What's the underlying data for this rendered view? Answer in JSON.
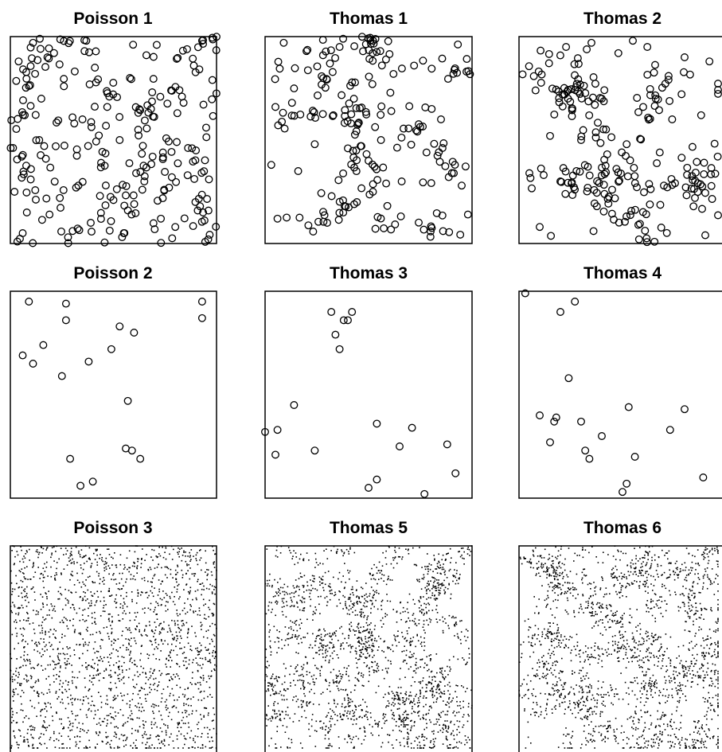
{
  "chart_data": [
    {
      "type": "scatter",
      "title": "Poisson 1",
      "marker": "circle",
      "xlim": [
        0,
        1
      ],
      "ylim": [
        0,
        1
      ],
      "n_points": 260,
      "x": [
        0.11,
        0.36,
        0.71,
        0.93,
        0.04,
        0.12,
        0.18,
        0.26,
        0.41,
        0.58,
        0.66,
        0.78,
        0.89,
        0.98,
        0.07,
        0.15,
        0.31,
        0.47,
        0.62,
        0.81,
        0.95,
        0.22,
        0.53,
        0.74,
        0.1,
        0.44,
        0.69,
        0.86,
        0.02,
        0.33,
        0.5,
        0.65,
        0.92,
        0.19,
        0.39,
        0.57,
        0.8,
        0.06,
        0.28,
        0.73,
        0.96,
        0.14,
        0.48,
        0.61,
        0.84,
        0.24,
        0.55,
        0.9,
        0.08,
        0.35,
        0.77
      ],
      "y": [
        0.97,
        0.93,
        0.96,
        0.98,
        0.88,
        0.82,
        0.9,
        0.76,
        0.85,
        0.8,
        0.91,
        0.74,
        0.86,
        0.79,
        0.62,
        0.7,
        0.58,
        0.66,
        0.55,
        0.63,
        0.56,
        0.47,
        0.5,
        0.44,
        0.36,
        0.39,
        0.42,
        0.33,
        0.25,
        0.28,
        0.21,
        0.3,
        0.18,
        0.14,
        0.1,
        0.16,
        0.08,
        0.05,
        0.03,
        0.12,
        0.02,
        0.5,
        0.71,
        0.34,
        0.68,
        0.22,
        0.05,
        0.45,
        0.15,
        0.6,
        0.27
      ]
    },
    {
      "type": "scatter",
      "title": "Thomas 1",
      "marker": "circle",
      "xlim": [
        0,
        1
      ],
      "ylim": [
        0,
        1
      ],
      "n_points": 210,
      "x": [
        0.09,
        0.2,
        0.28,
        0.36,
        0.52,
        0.72,
        0.91,
        0.05,
        0.13,
        0.33,
        0.45,
        0.61,
        0.85,
        0.24,
        0.4,
        0.56,
        0.78,
        0.03,
        0.16,
        0.5,
        0.66,
        0.95,
        0.06,
        0.3,
        0.86,
        0.98
      ],
      "y": [
        0.97,
        0.93,
        0.91,
        0.95,
        0.92,
        0.86,
        0.82,
        0.66,
        0.68,
        0.62,
        0.58,
        0.64,
        0.6,
        0.48,
        0.46,
        0.5,
        0.44,
        0.38,
        0.35,
        0.4,
        0.3,
        0.28,
        0.12,
        0.1,
        0.06,
        0.14
      ]
    },
    {
      "type": "scatter",
      "title": "Thomas 2",
      "marker": "circle",
      "xlim": [
        0,
        1
      ],
      "ylim": [
        0,
        1
      ],
      "n_points": 230,
      "x": [
        0.35,
        0.48,
        0.55,
        0.62,
        0.8,
        0.92,
        0.08,
        0.22,
        0.4,
        0.6,
        0.74,
        0.88,
        0.15,
        0.3,
        0.52,
        0.68,
        0.96,
        0.05,
        0.2,
        0.45,
        0.7,
        0.85,
        0.1,
        0.36,
        0.58,
        0.9
      ],
      "y": [
        0.97,
        0.92,
        0.98,
        0.95,
        0.9,
        0.88,
        0.74,
        0.72,
        0.7,
        0.66,
        0.6,
        0.62,
        0.52,
        0.5,
        0.48,
        0.44,
        0.42,
        0.34,
        0.3,
        0.26,
        0.28,
        0.22,
        0.08,
        0.06,
        0.02,
        0.04
      ]
    },
    {
      "type": "scatter",
      "title": "Poisson 2",
      "marker": "circle",
      "xlim": [
        0,
        1
      ],
      "ylim": [
        0,
        1
      ],
      "x": [
        0.09,
        0.27,
        0.93,
        0.27,
        0.93,
        0.53,
        0.6,
        0.16,
        0.49,
        0.06,
        0.11,
        0.38,
        0.25,
        0.57,
        0.56,
        0.59,
        0.63,
        0.29,
        0.4,
        0.34
      ],
      "y": [
        0.95,
        0.94,
        0.95,
        0.86,
        0.87,
        0.83,
        0.8,
        0.74,
        0.72,
        0.69,
        0.65,
        0.66,
        0.59,
        0.47,
        0.24,
        0.23,
        0.19,
        0.19,
        0.08,
        0.06
      ]
    },
    {
      "type": "scatter",
      "title": "Thomas 3",
      "marker": "circle",
      "xlim": [
        0,
        1
      ],
      "ylim": [
        0,
        1
      ],
      "x": [
        0.32,
        0.42,
        0.38,
        0.4,
        0.34,
        0.36,
        0.14,
        0.06,
        0.0,
        0.05,
        0.24,
        0.54,
        0.71,
        0.65,
        0.88,
        0.92,
        0.54,
        0.5,
        0.77
      ],
      "y": [
        0.9,
        0.9,
        0.86,
        0.86,
        0.79,
        0.72,
        0.45,
        0.33,
        0.32,
        0.21,
        0.23,
        0.36,
        0.34,
        0.25,
        0.26,
        0.12,
        0.09,
        0.05,
        0.02
      ]
    },
    {
      "type": "scatter",
      "title": "Thomas 4",
      "marker": "circle",
      "xlim": [
        0,
        1
      ],
      "ylim": [
        0,
        1
      ],
      "x": [
        0.03,
        0.27,
        0.2,
        0.24,
        0.1,
        0.18,
        0.17,
        0.3,
        0.53,
        0.8,
        0.73,
        0.15,
        0.4,
        0.32,
        0.56,
        0.34,
        0.52,
        0.5,
        0.89
      ],
      "y": [
        0.99,
        0.95,
        0.9,
        0.58,
        0.4,
        0.39,
        0.37,
        0.37,
        0.44,
        0.43,
        0.33,
        0.27,
        0.3,
        0.23,
        0.2,
        0.19,
        0.07,
        0.03,
        0.1
      ]
    },
    {
      "type": "scatter",
      "title": "Poisson 3",
      "marker": "dot",
      "xlim": [
        0,
        1
      ],
      "ylim": [
        0,
        1
      ],
      "n_points": 2000
    },
    {
      "type": "scatter",
      "title": "Thomas 5",
      "marker": "dot",
      "xlim": [
        0,
        1
      ],
      "ylim": [
        0,
        1
      ],
      "n_points": 2000
    },
    {
      "type": "scatter",
      "title": "Thomas 6",
      "marker": "dot",
      "xlim": [
        0,
        1
      ],
      "ylim": [
        0,
        1
      ],
      "n_points": 2000
    }
  ]
}
